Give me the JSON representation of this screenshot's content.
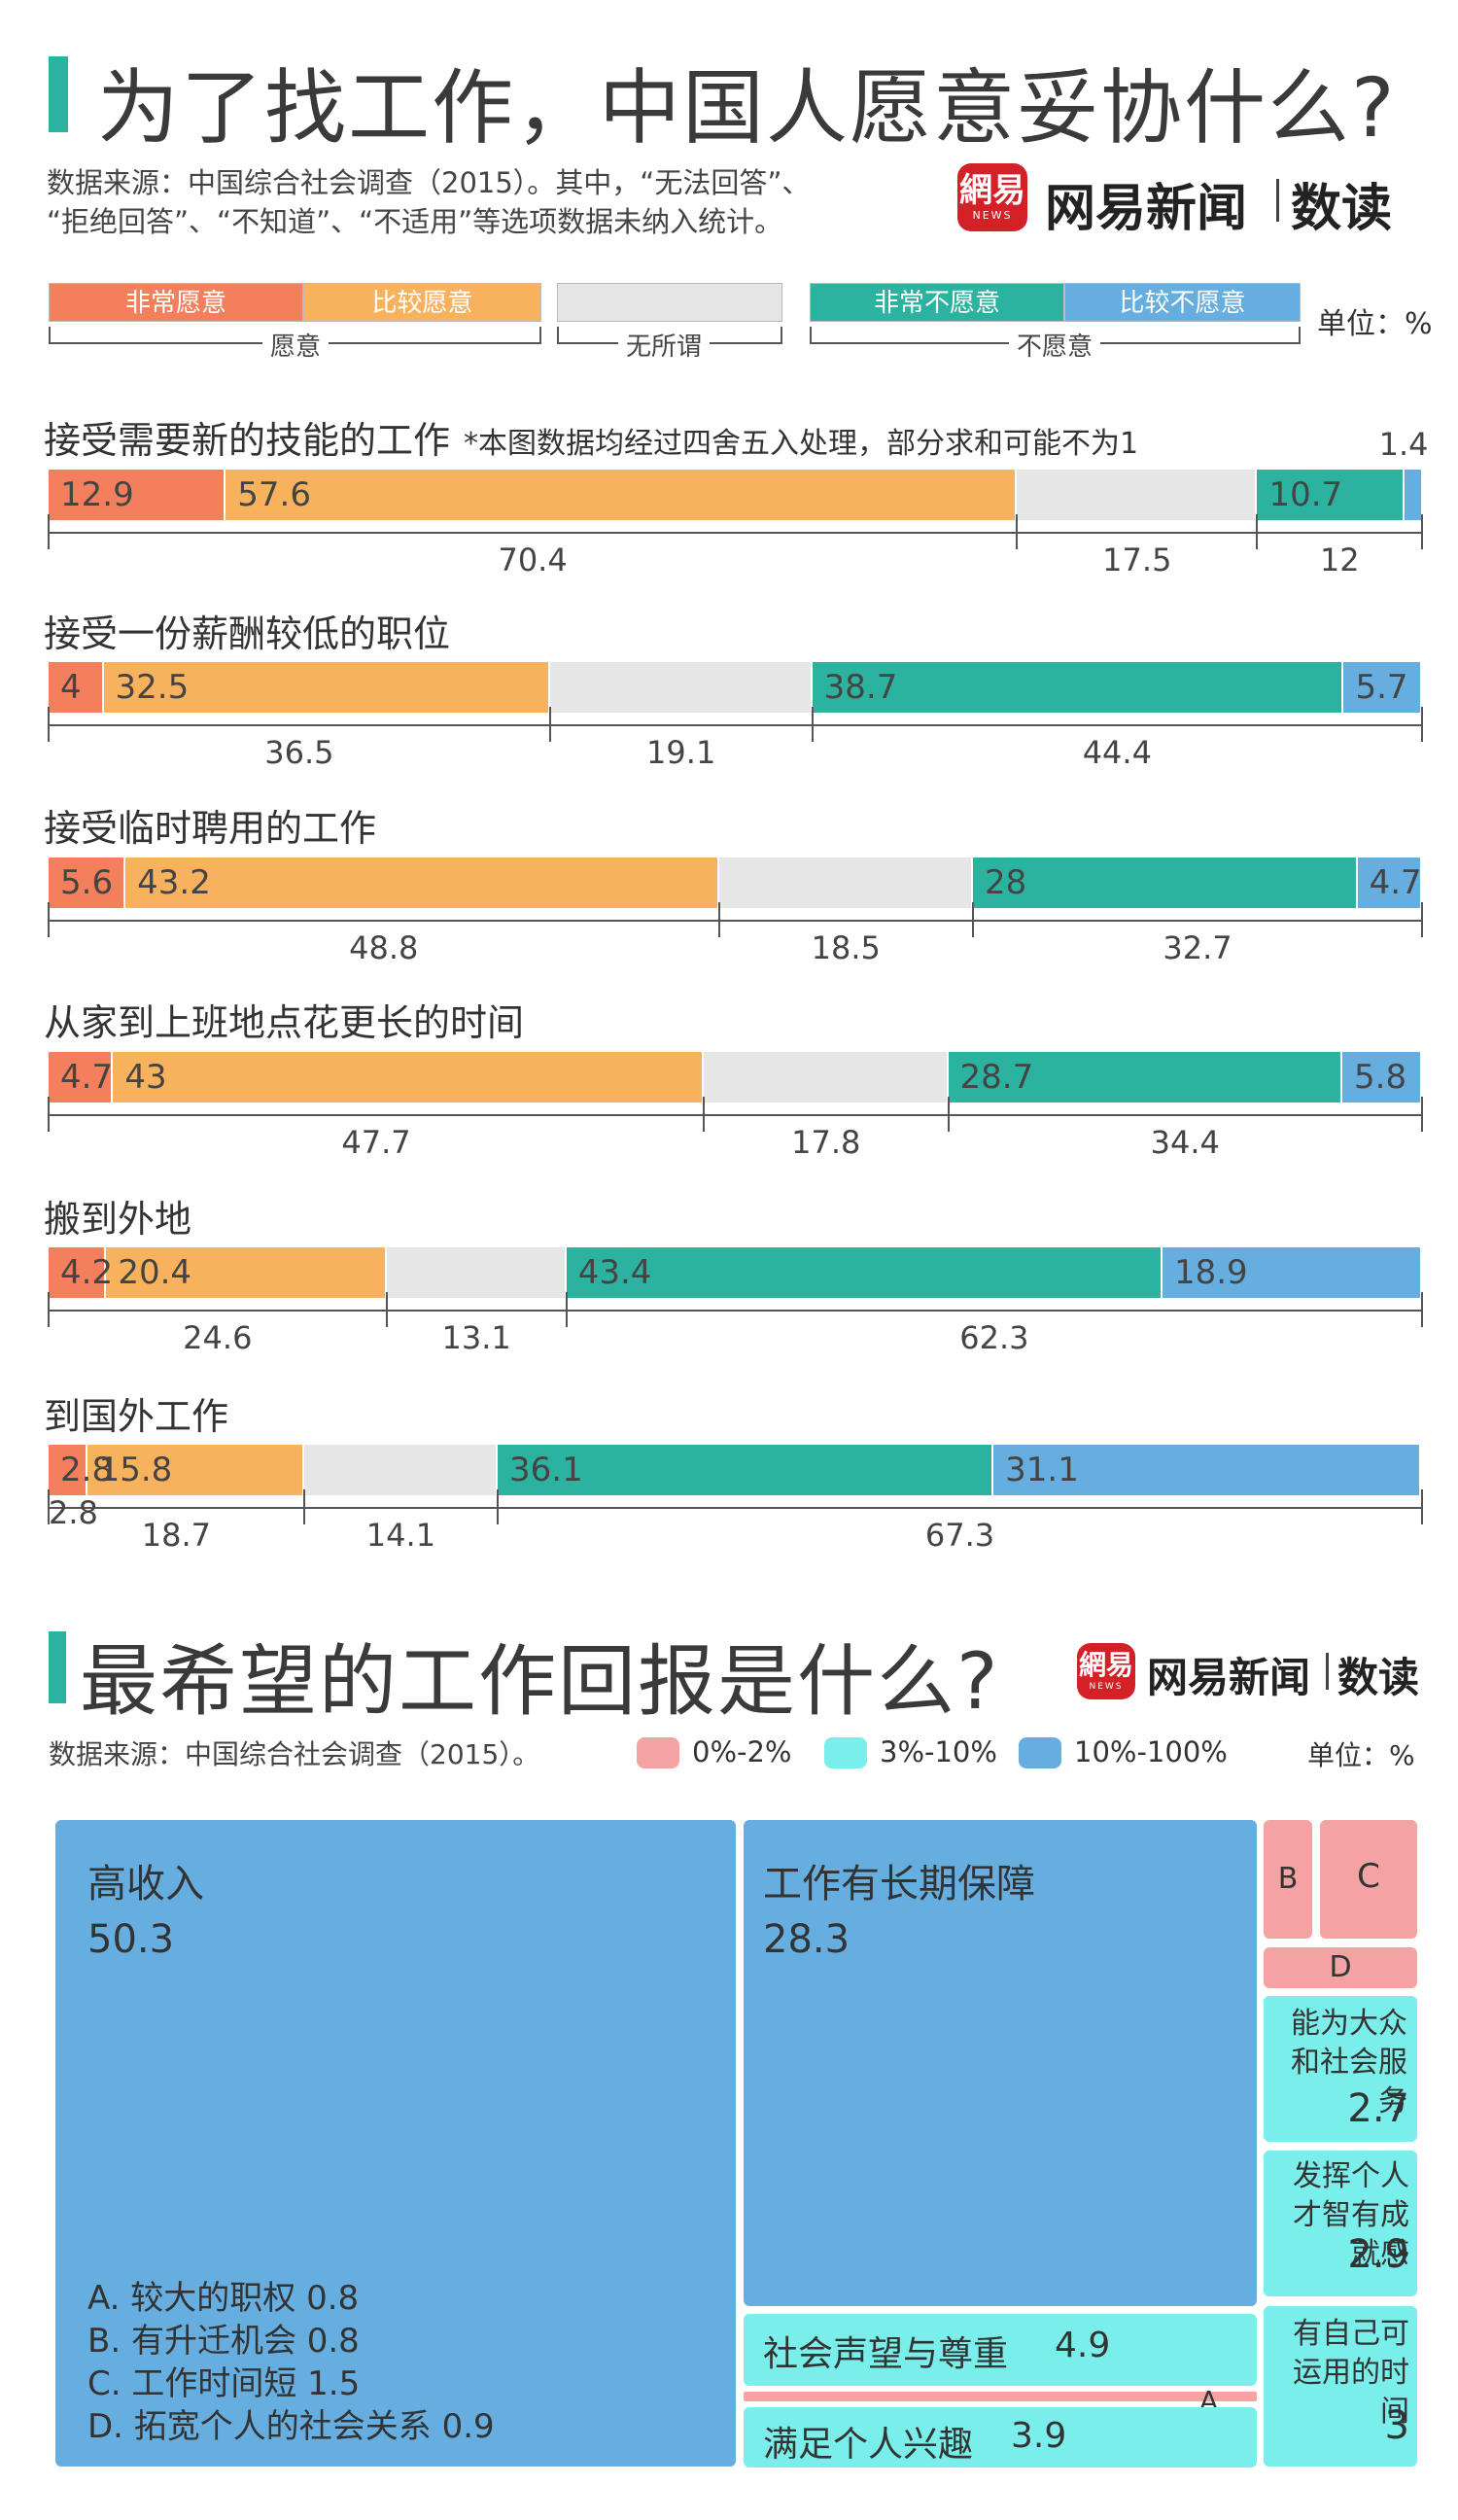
{
  "section1": {
    "title": "为了找工作，中国人愿意妥协什么?",
    "source_line1": "数据来源：中国综合社会调查（2015）。其中，“无法回答”、",
    "source_line2": "“拒绝回答”、“不知道”、“不适用”等选项数据未纳入统计。",
    "legend": {
      "very_willing": "非常愿意",
      "somewhat_willing": "比较愿意",
      "very_unwilling": "非常不愿意",
      "somewhat_unwilling": "比较不愿意",
      "group_willing": "愿意",
      "group_neutral": "无所谓",
      "group_unwilling": "不愿意"
    },
    "unit": "单位：%",
    "footnote": "*本图数据均经过四舍五入处理，部分求和可能不为1"
  },
  "brand": {
    "logo_char": "網易",
    "logo_news": "NEWS",
    "name": "网易新闻",
    "sub": "数读"
  },
  "colors": {
    "very_willing": "#f47f5c",
    "somewhat_willing": "#f8b25e",
    "neutral": "#e6e6e6",
    "very_unwilling": "#2bb3a0",
    "somewhat_unwilling": "#66aee0",
    "tm_low": "#f4a3a3",
    "tm_mid": "#7aeeea",
    "tm_high": "#66aee0"
  },
  "chart_data": [
    {
      "type": "bar",
      "stacked": true,
      "orientation": "horizontal",
      "title": "为了找工作，中国人愿意妥协什么?",
      "series_names": [
        "非常愿意",
        "比较愿意",
        "无所谓",
        "非常不愿意",
        "比较不愿意"
      ],
      "groups": [
        "愿意",
        "无所谓",
        "不愿意"
      ],
      "categories": [
        {
          "label": "接受需要新的技能的工作",
          "values": [
            12.9,
            57.6,
            17.5,
            10.7,
            1.4
          ],
          "group_totals": [
            70.4,
            17.5,
            12
          ]
        },
        {
          "label": "接受一份薪酬较低的职位",
          "values": [
            4,
            32.5,
            19.1,
            38.7,
            5.7
          ],
          "group_totals": [
            36.5,
            19.1,
            44.4
          ]
        },
        {
          "label": "接受临时聘用的工作",
          "values": [
            5.6,
            43.2,
            18.5,
            28,
            4.7
          ],
          "group_totals": [
            48.8,
            18.5,
            32.7
          ]
        },
        {
          "label": "从家到上班地点花更长的时间",
          "values": [
            4.7,
            43,
            17.8,
            28.7,
            5.8
          ],
          "group_totals": [
            47.7,
            17.8,
            34.4
          ]
        },
        {
          "label": "搬到外地",
          "values": [
            4.2,
            20.4,
            13.1,
            43.4,
            18.9
          ],
          "group_totals": [
            24.6,
            13.1,
            62.3
          ]
        },
        {
          "label": "到国外工作",
          "values": [
            2.8,
            15.8,
            14.1,
            36.1,
            31.1
          ],
          "group_totals": [
            18.7,
            14.1,
            67.3
          ]
        }
      ],
      "unit": "%"
    },
    {
      "type": "treemap",
      "title": "最希望的工作回报是什么?",
      "source": "数据来源：中国综合社会调查（2015）。",
      "unit": "单位：%",
      "legend": [
        "0%-2%",
        "3%-10%",
        "10%-100%"
      ],
      "items": [
        {
          "label": "高收入",
          "value": 50.3,
          "display": "50.3",
          "bin": "10%-100%"
        },
        {
          "label": "工作有长期保障",
          "value": 28.3,
          "display": "28.3",
          "bin": "10%-100%"
        },
        {
          "label": "社会声望与尊重",
          "value": 4.9,
          "display": "4.9",
          "bin": "3%-10%"
        },
        {
          "label": "满足个人兴趣",
          "value": 3.9,
          "display": "3.9",
          "bin": "3%-10%"
        },
        {
          "label": "能为大众和社会服务",
          "value": 2.7,
          "display": "2.7",
          "bin": "3%-10%"
        },
        {
          "label": "发挥个人才智有成就感",
          "value": 2.9,
          "display": "2.9",
          "bin": "3%-10%"
        },
        {
          "label": "有自己可运用的时间",
          "value": 3,
          "display": "3",
          "bin": "3%-10%"
        },
        {
          "label": "较大的职权",
          "value": 0.8,
          "display": "A",
          "bin": "0%-2%"
        },
        {
          "label": "有升迁机会",
          "value": 0.8,
          "display": "B",
          "bin": "0%-2%"
        },
        {
          "label": "工作时间短",
          "value": 1.5,
          "display": "C",
          "bin": "0%-2%"
        },
        {
          "label": "拓宽个人的社会关系",
          "value": 0.9,
          "display": "D",
          "bin": "0%-2%"
        }
      ],
      "notes": [
        "A. 较大的职权  0.8",
        "B. 有升迁机会  0.8",
        "C. 工作时间短  1.5",
        "D. 拓宽个人的社会关系  0.9"
      ]
    }
  ],
  "section2": {
    "title": "最希望的工作回报是什么?",
    "source": "数据来源：中国综合社会调查（2015）。",
    "legend": [
      "0%-2%",
      "3%-10%",
      "10%-100%"
    ],
    "unit": "单位：%"
  }
}
